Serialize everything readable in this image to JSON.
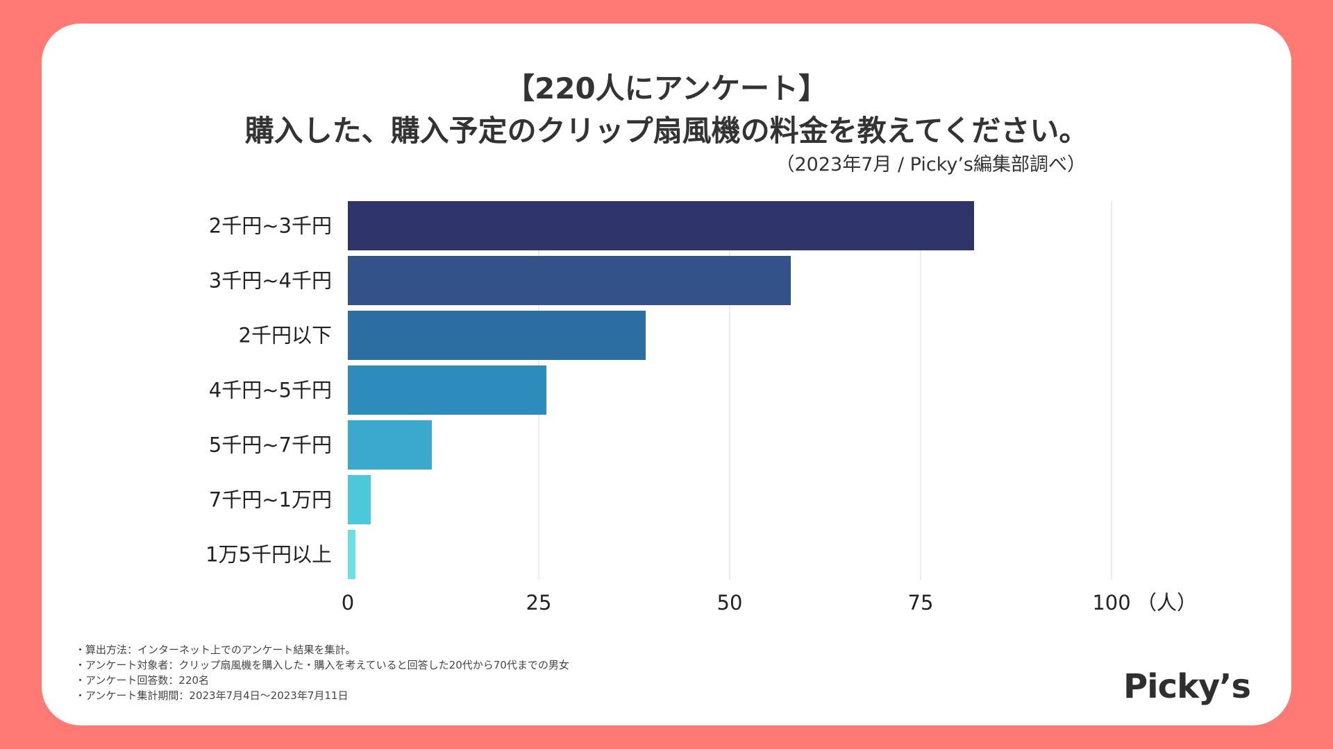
{
  "background_color": "#FF7A74",
  "title_line1": "【220人にアンケート】",
  "title_line2": "購入した、購入予定のクリップ扇風機の料金を教えてください。",
  "subtitle": "（2023年7月 / Picky’s編集部調べ）",
  "chart_data": {
    "type": "bar",
    "orientation": "horizontal",
    "categories": [
      "2千円~3千円",
      "3千円~4千円",
      "2千円以下",
      "4千円~5千円",
      "5千円~7千円",
      "7千円~1万円",
      "1万5千円以上"
    ],
    "values": [
      82,
      58,
      39,
      26,
      11,
      3,
      1
    ],
    "colors": [
      "#2F346A",
      "#325289",
      "#2D6EA2",
      "#2E8CBC",
      "#3BA8CE",
      "#4DC8DA",
      "#6EE0E3"
    ],
    "xlim": [
      0,
      100
    ],
    "xticks": [
      "0",
      "25",
      "50",
      "75",
      "100"
    ],
    "xunit": "（人）",
    "grid": true
  },
  "notes": [
    "・算出方法：インターネット上でのアンケート結果を集計。",
    "・アンケート対象者：クリップ扇風機を購入した・購入を考えていると回答した20代から70代までの男女",
    "・アンケート回答数：220名",
    "・アンケート集計期間：2023年7月4日〜2023年7月11日"
  ],
  "logo_text": "Picky’s"
}
